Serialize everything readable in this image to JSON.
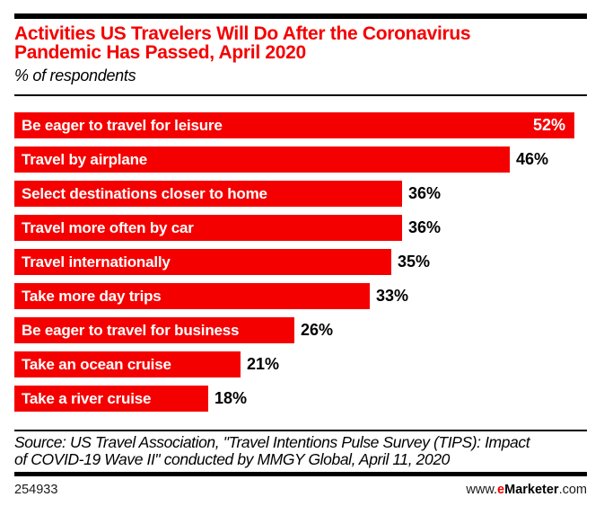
{
  "header": {
    "title_lines": [
      "Activities US Travelers Will Do After the Coronavirus",
      "Pandemic Has Passed, April 2020"
    ],
    "subtitle": "% of respondents"
  },
  "chart_data": {
    "type": "bar",
    "orientation": "horizontal",
    "title": "Activities US Travelers Will Do After the Coronavirus Pandemic Has Passed, April 2020",
    "subtitle": "% of respondents",
    "unit": "%",
    "axis_visible": false,
    "grid": false,
    "legend": "none",
    "xlim": [
      0,
      53
    ],
    "bar_color": "#f40000",
    "bar_text_color": "#ffffff",
    "value_text_color": "#000000",
    "categories": [
      "Be eager to travel for leisure",
      "Travel by airplane",
      "Select destinations closer to home",
      "Travel more often by car",
      "Travel internationally",
      "Take more day trips",
      "Be eager to travel for business",
      "Take an ocean cruise",
      "Take a river cruise"
    ],
    "values": [
      52,
      46,
      36,
      36,
      35,
      33,
      26,
      21,
      18
    ],
    "rows": [
      {
        "label": "Be eager to travel for leisure",
        "value": 52,
        "display": "52%",
        "value_label_position": "inside"
      },
      {
        "label": "Travel by airplane",
        "value": 46,
        "display": "46%",
        "value_label_position": "outside"
      },
      {
        "label": "Select destinations closer to home",
        "value": 36,
        "display": "36%",
        "value_label_position": "outside"
      },
      {
        "label": "Travel more often by car",
        "value": 36,
        "display": "36%",
        "value_label_position": "outside"
      },
      {
        "label": "Travel internationally",
        "value": 35,
        "display": "35%",
        "value_label_position": "outside"
      },
      {
        "label": "Take more day trips",
        "value": 33,
        "display": "33%",
        "value_label_position": "outside"
      },
      {
        "label": "Be eager to travel for business",
        "value": 26,
        "display": "26%",
        "value_label_position": "outside"
      },
      {
        "label": "Take an ocean cruise",
        "value": 21,
        "display": "21%",
        "value_label_position": "outside"
      },
      {
        "label": "Take a river cruise",
        "value": 18,
        "display": "18%",
        "value_label_position": "outside"
      }
    ]
  },
  "footer": {
    "source_lines": [
      "Source: US Travel Association, \"Travel Intentions Pulse Survey (TIPS): Impact",
      "of COVID-19 Wave II\" conducted by MMGY Global, April 11, 2020"
    ],
    "chart_id": "254933",
    "website": {
      "prefix": "www.",
      "e": "e",
      "brand": "Marketer",
      "suffix": ".com"
    }
  },
  "colors": {
    "accent_red": "#f40000",
    "rule_black": "#000000",
    "background": "#ffffff"
  }
}
